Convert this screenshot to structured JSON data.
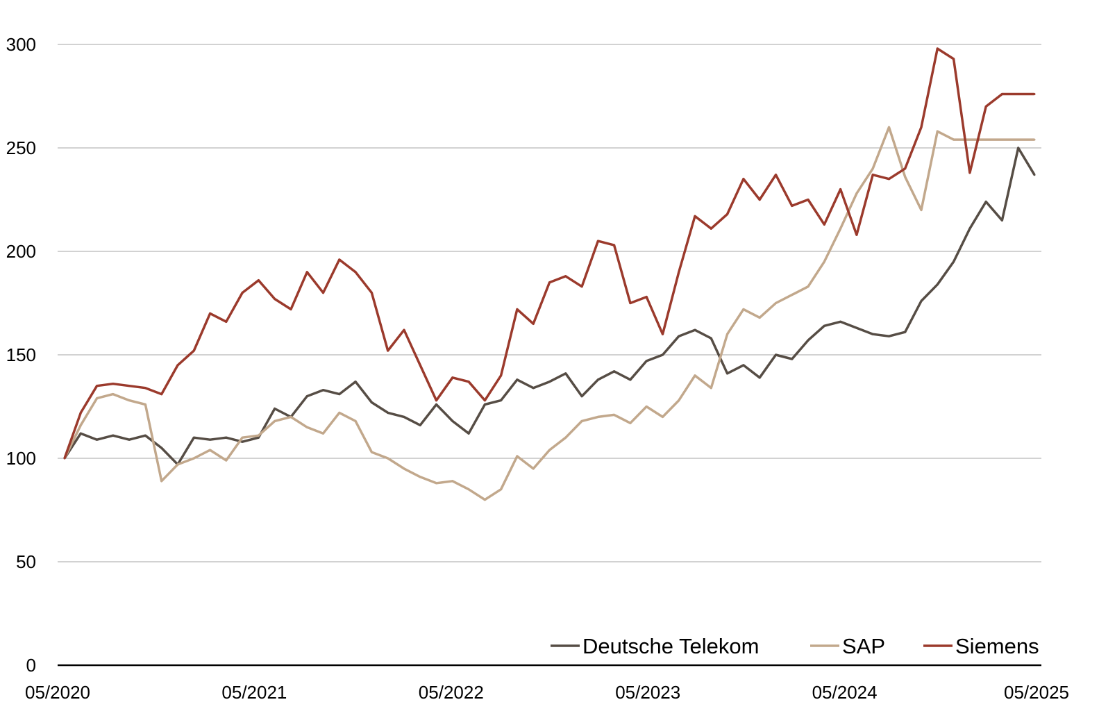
{
  "chart_data": {
    "type": "line",
    "title": "",
    "xlabel": "",
    "ylabel": "",
    "ylim": [
      0,
      300
    ],
    "y_ticks": [
      0,
      50,
      100,
      150,
      200,
      250,
      300
    ],
    "y_tick_labels": [
      "0",
      "50",
      "100",
      "150",
      "200",
      "250",
      "300"
    ],
    "x_range": [
      "05/2020",
      "05/2025"
    ],
    "x_tick_labels": [
      "05/2020",
      "05/2021",
      "05/2022",
      "05/2023",
      "05/2024",
      "05/2025"
    ],
    "grid": "horizontal",
    "legend_position": "bottom-right",
    "x": [
      "05/2020",
      "06/2020",
      "07/2020",
      "08/2020",
      "09/2020",
      "10/2020",
      "11/2020",
      "12/2020",
      "01/2021",
      "02/2021",
      "03/2021",
      "04/2021",
      "05/2021",
      "06/2021",
      "07/2021",
      "08/2021",
      "09/2021",
      "10/2021",
      "11/2021",
      "12/2021",
      "01/2022",
      "02/2022",
      "03/2022",
      "04/2022",
      "05/2022",
      "06/2022",
      "07/2022",
      "08/2022",
      "09/2022",
      "10/2022",
      "11/2022",
      "12/2022",
      "01/2023",
      "02/2023",
      "03/2023",
      "04/2023",
      "05/2023",
      "06/2023",
      "07/2023",
      "08/2023",
      "09/2023",
      "10/2023",
      "11/2023",
      "12/2023",
      "01/2024",
      "02/2024",
      "03/2024",
      "04/2024",
      "05/2024",
      "06/2024",
      "07/2024",
      "08/2024",
      "09/2024",
      "10/2024",
      "11/2024",
      "12/2024",
      "01/2025",
      "02/2025",
      "03/2025",
      "04/2025",
      "05/2025"
    ],
    "series": [
      {
        "name": "Deutsche Telekom",
        "color": "#564d45",
        "values": [
          100,
          112,
          109,
          111,
          109,
          111,
          105,
          97,
          110,
          109,
          110,
          108,
          110,
          124,
          120,
          130,
          133,
          131,
          137,
          127,
          122,
          120,
          116,
          126,
          118,
          112,
          126,
          128,
          138,
          134,
          137,
          141,
          130,
          138,
          142,
          138,
          147,
          150,
          159,
          162,
          158,
          141,
          145,
          139,
          150,
          148,
          157,
          164,
          166,
          163,
          160,
          159,
          161,
          176,
          184,
          195,
          211,
          224,
          215,
          250,
          237
        ]
      },
      {
        "name": "SAP",
        "color": "#c2a88c",
        "values": [
          100,
          116,
          129,
          131,
          128,
          126,
          89,
          97,
          100,
          104,
          99,
          110,
          111,
          118,
          120,
          115,
          112,
          122,
          118,
          103,
          100,
          95,
          91,
          88,
          89,
          85,
          80,
          85,
          101,
          95,
          104,
          110,
          118,
          120,
          121,
          117,
          125,
          120,
          128,
          140,
          134,
          160,
          172,
          168,
          175,
          179,
          183,
          195,
          211,
          228,
          240,
          260,
          236,
          220,
          258,
          254,
          254,
          254,
          254,
          254,
          254
        ]
      },
      {
        "name": "Siemens",
        "color": "#9b3a2c",
        "values": [
          100,
          122,
          135,
          136,
          135,
          134,
          131,
          145,
          152,
          170,
          166,
          180,
          186,
          177,
          172,
          190,
          180,
          196,
          190,
          180,
          152,
          162,
          145,
          128,
          139,
          137,
          128,
          140,
          172,
          165,
          185,
          188,
          183,
          205,
          203,
          175,
          178,
          160,
          190,
          217,
          211,
          218,
          235,
          225,
          237,
          222,
          225,
          213,
          230,
          208,
          237,
          235,
          240,
          260,
          298,
          293,
          238,
          270,
          276,
          276,
          276
        ]
      }
    ]
  }
}
